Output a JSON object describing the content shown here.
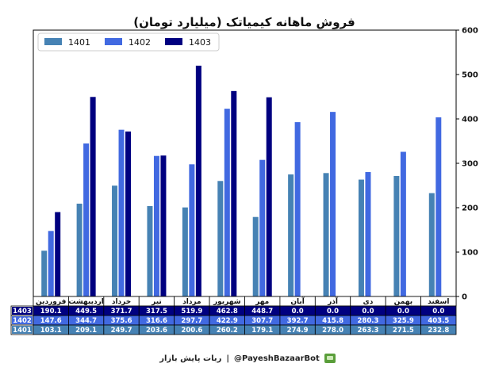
{
  "chart_data": {
    "type": "bar",
    "title": "فروش ماهانه کیمیاتک (میلیارد تومان)",
    "categories": [
      "فروردین",
      "اردیبهشت",
      "خرداد",
      "تیر",
      "مرداد",
      "شهریور",
      "مهر",
      "آبان",
      "آذر",
      "دی",
      "بهمن",
      "اسفند"
    ],
    "series": [
      {
        "name": "1401",
        "color": "#4682b4",
        "values": [
          103.1,
          209.1,
          249.7,
          203.6,
          200.6,
          260.2,
          179.1,
          274.9,
          278.0,
          263.3,
          271.5,
          232.8
        ]
      },
      {
        "name": "1402",
        "color": "#4169e1",
        "values": [
          147.6,
          344.7,
          375.6,
          316.6,
          297.7,
          422.9,
          307.7,
          392.7,
          415.8,
          280.3,
          325.9,
          403.5
        ]
      },
      {
        "name": "1403",
        "color": "#000080",
        "values": [
          190.1,
          449.5,
          371.7,
          317.5,
          519.9,
          462.8,
          448.7,
          0.0,
          0.0,
          0.0,
          0.0,
          0.0
        ]
      }
    ],
    "table_rows": [
      {
        "label": "1403",
        "cells": [
          "190.1",
          "449.5",
          "371.7",
          "317.5",
          "519.9",
          "462.8",
          "448.7",
          "0.0",
          "0.0",
          "0.0",
          "0.0",
          "0.0"
        ]
      },
      {
        "label": "1402",
        "cells": [
          "147.6",
          "344.7",
          "375.6",
          "316.6",
          "297.7",
          "422.9",
          "307.7",
          "392.7",
          "415.8",
          "280.3",
          "325.9",
          "403.5"
        ]
      },
      {
        "label": "1401",
        "cells": [
          "103.1",
          "209.1",
          "249.7",
          "203.6",
          "200.6",
          "260.2",
          "179.1",
          "274.9",
          "278.0",
          "263.3",
          "271.5",
          "232.8"
        ]
      }
    ],
    "ylim": [
      0,
      600
    ],
    "yticks": [
      0,
      100,
      200,
      300,
      400,
      500,
      600
    ],
    "y_axis_side": "right",
    "legend_position": "top-left",
    "grid": false
  },
  "footer": {
    "bot_name": "ربات پایش بازار",
    "separator": "|",
    "handle": "@PayeshBazaarBot",
    "icon": "robot-icon"
  }
}
